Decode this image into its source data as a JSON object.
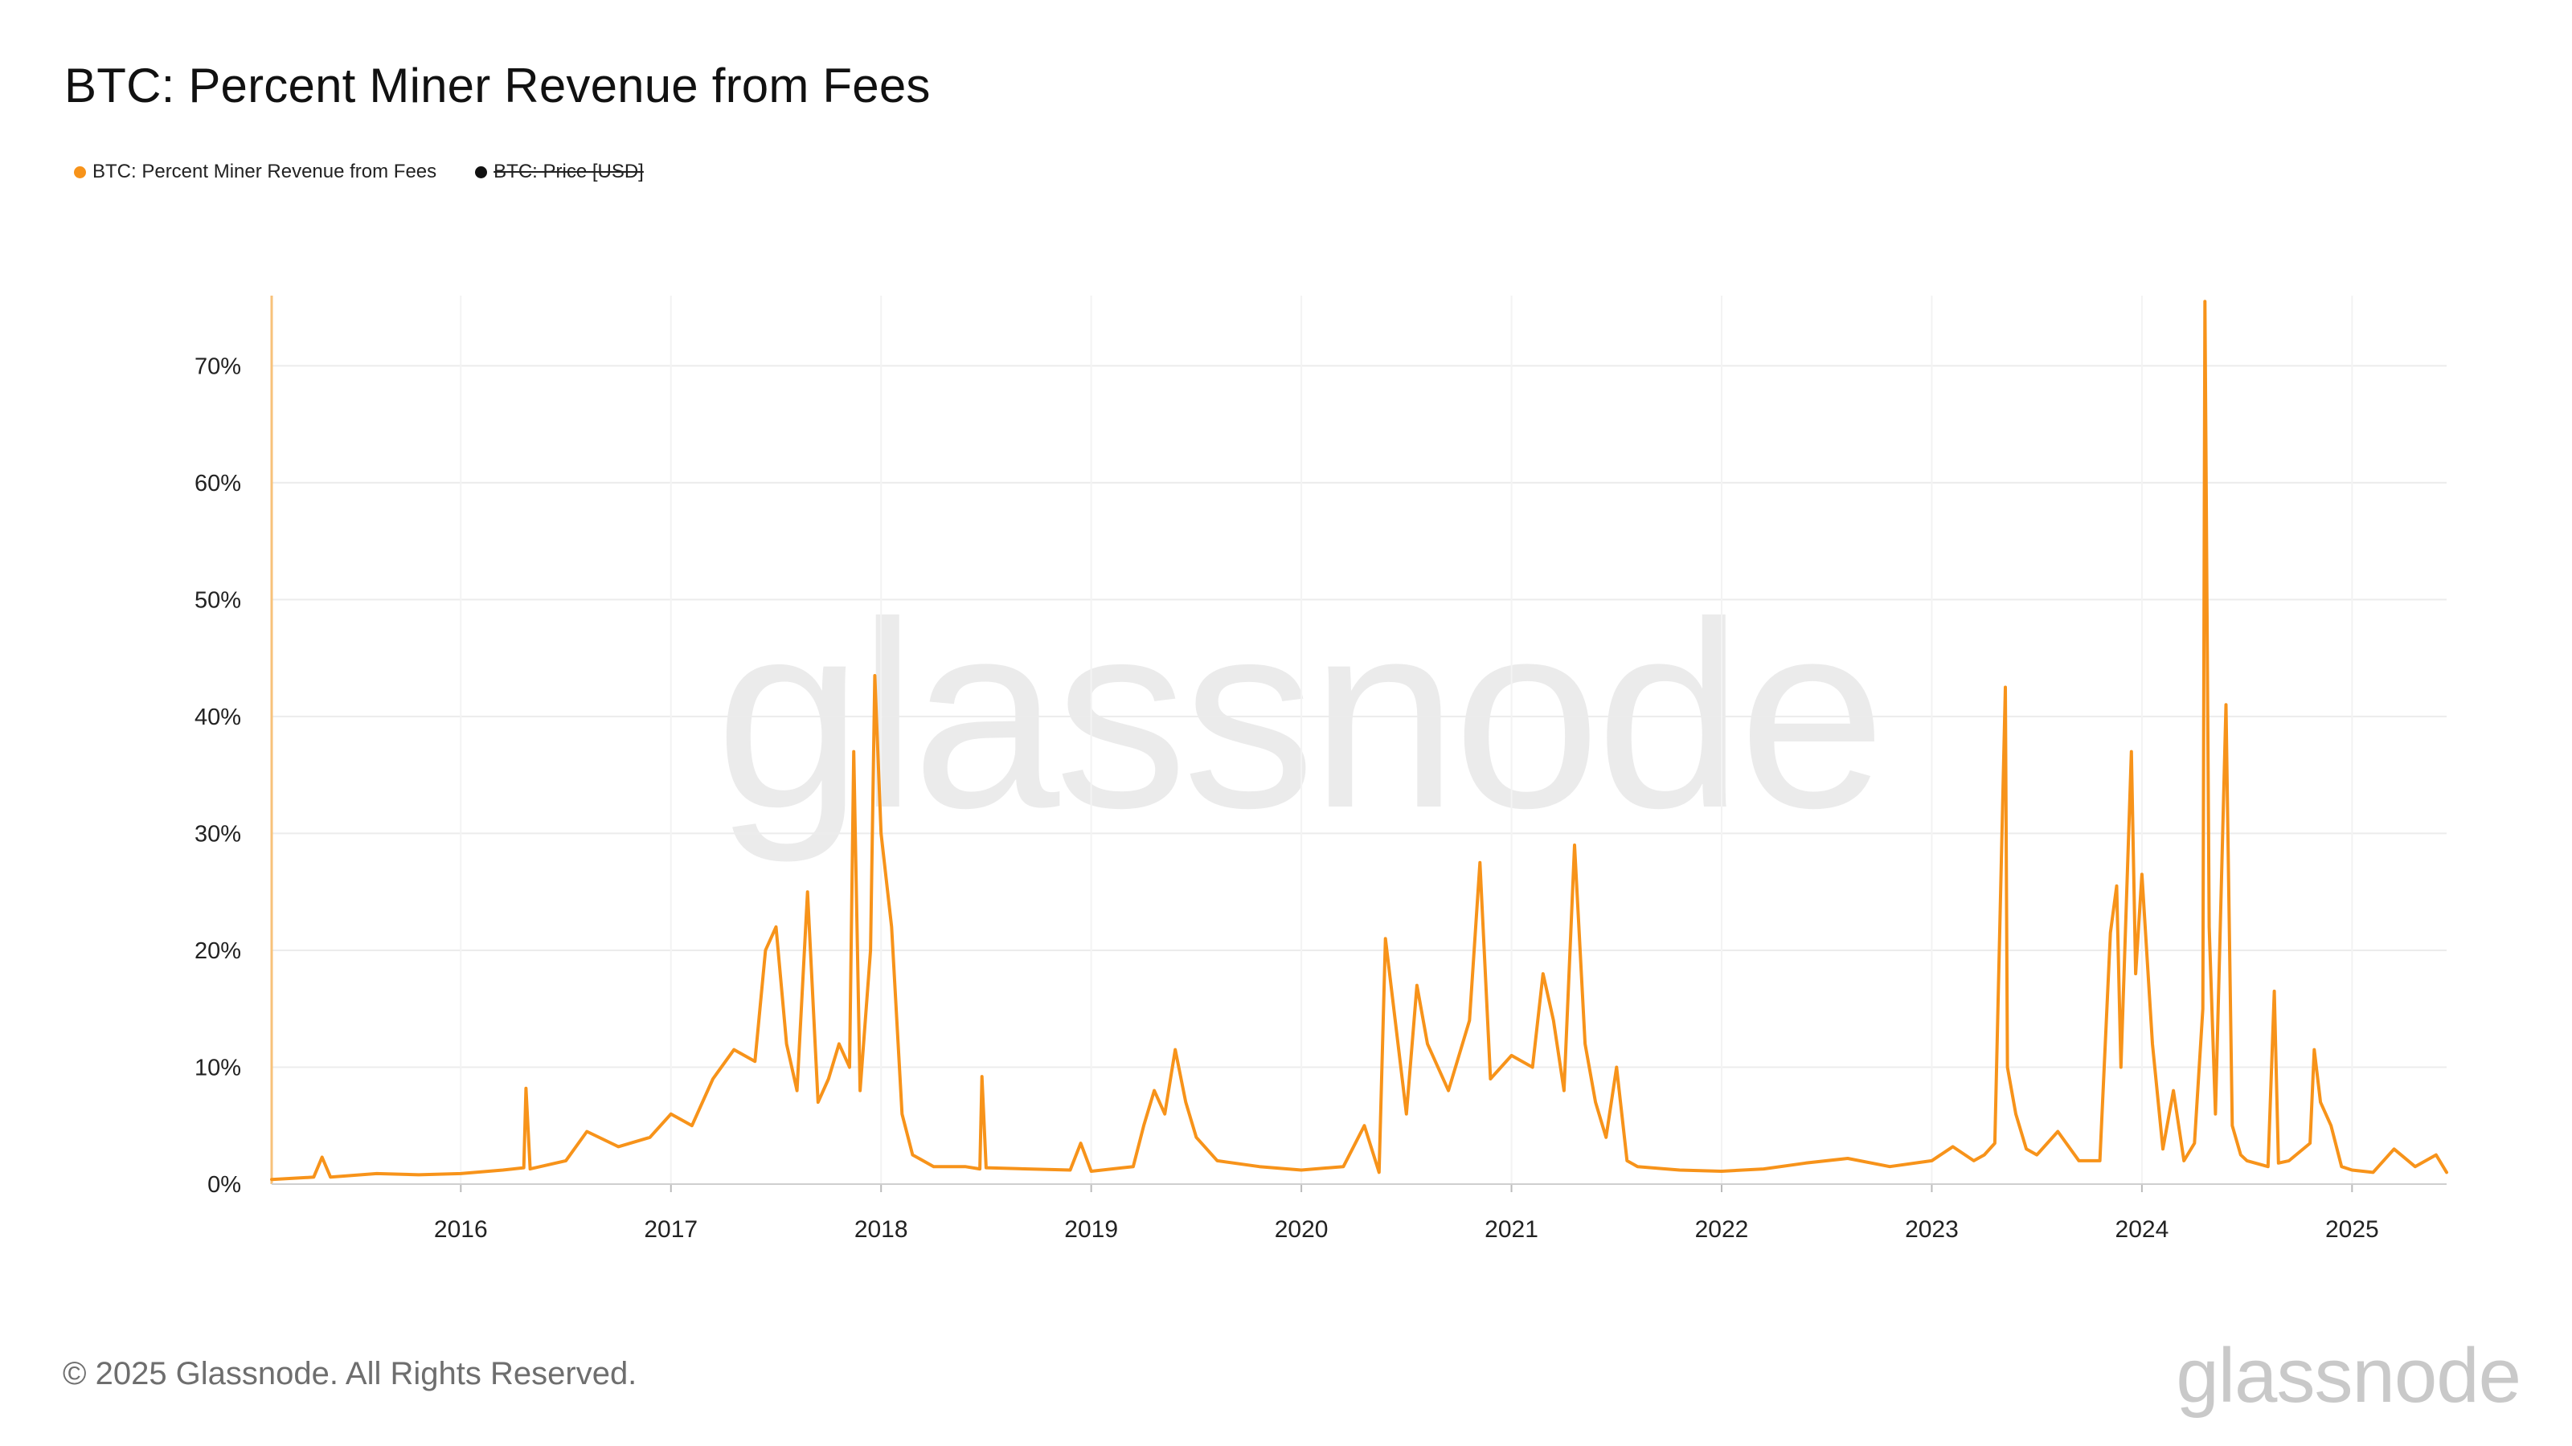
{
  "header": {
    "title": "BTC: Percent Miner Revenue from Fees"
  },
  "legend": {
    "items": [
      {
        "label": "BTC: Percent Miner Revenue from Fees",
        "color": "#f7931a",
        "enabled": true
      },
      {
        "label": "BTC: Price [USD]",
        "color": "#111111",
        "enabled": false
      }
    ]
  },
  "footer": {
    "copyright": "© 2025 Glassnode. All Rights Reserved.",
    "brand": "glassnode"
  },
  "watermark": "glassnode",
  "chart_data": {
    "type": "line",
    "title": "BTC: Percent Miner Revenue from Fees",
    "xlabel": "",
    "ylabel": "",
    "line_color": "#f7931a",
    "xlim": [
      2015.1,
      2025.45
    ],
    "ylim": [
      0,
      76
    ],
    "y_ticks": [
      0,
      10,
      20,
      30,
      40,
      50,
      60,
      70
    ],
    "y_tick_labels": [
      "0%",
      "10%",
      "20%",
      "30%",
      "40%",
      "50%",
      "60%",
      "70%"
    ],
    "x_ticks": [
      2016,
      2017,
      2018,
      2019,
      2020,
      2021,
      2022,
      2023,
      2024,
      2025
    ],
    "x_tick_labels": [
      "2016",
      "2017",
      "2018",
      "2019",
      "2020",
      "2021",
      "2022",
      "2023",
      "2024",
      "2025"
    ],
    "series": [
      {
        "name": "BTC: Percent Miner Revenue from Fees",
        "x": [
          2015.1,
          2015.3,
          2015.34,
          2015.38,
          2015.6,
          2015.8,
          2016.0,
          2016.2,
          2016.3,
          2016.31,
          2016.33,
          2016.5,
          2016.6,
          2016.75,
          2016.9,
          2017.0,
          2017.1,
          2017.2,
          2017.3,
          2017.4,
          2017.45,
          2017.5,
          2017.55,
          2017.6,
          2017.65,
          2017.7,
          2017.75,
          2017.8,
          2017.85,
          2017.87,
          2017.9,
          2017.95,
          2017.97,
          2018.0,
          2018.05,
          2018.1,
          2018.15,
          2018.25,
          2018.4,
          2018.47,
          2018.48,
          2018.5,
          2018.7,
          2018.9,
          2018.95,
          2019.0,
          2019.2,
          2019.25,
          2019.3,
          2019.35,
          2019.4,
          2019.45,
          2019.5,
          2019.6,
          2019.8,
          2020.0,
          2020.2,
          2020.3,
          2020.37,
          2020.4,
          2020.5,
          2020.55,
          2020.6,
          2020.7,
          2020.8,
          2020.85,
          2020.9,
          2021.0,
          2021.1,
          2021.15,
          2021.2,
          2021.25,
          2021.3,
          2021.35,
          2021.4,
          2021.45,
          2021.5,
          2021.55,
          2021.6,
          2021.8,
          2022.0,
          2022.2,
          2022.4,
          2022.6,
          2022.8,
          2023.0,
          2023.1,
          2023.2,
          2023.25,
          2023.3,
          2023.35,
          2023.36,
          2023.4,
          2023.45,
          2023.5,
          2023.6,
          2023.7,
          2023.8,
          2023.85,
          2023.88,
          2023.9,
          2023.95,
          2023.97,
          2024.0,
          2024.05,
          2024.1,
          2024.15,
          2024.2,
          2024.25,
          2024.29,
          2024.3,
          2024.32,
          2024.35,
          2024.4,
          2024.43,
          2024.47,
          2024.5,
          2024.6,
          2024.63,
          2024.65,
          2024.7,
          2024.8,
          2024.82,
          2024.85,
          2024.9,
          2024.95,
          2025.0,
          2025.1,
          2025.2,
          2025.3,
          2025.4,
          2025.45
        ],
        "values": [
          0.4,
          0.6,
          2.3,
          0.6,
          0.9,
          0.8,
          0.9,
          1.2,
          1.4,
          8.2,
          1.3,
          2.0,
          4.5,
          3.2,
          4.0,
          6.0,
          5.0,
          9.0,
          11.5,
          10.5,
          20.0,
          22.0,
          12.0,
          8.0,
          25.0,
          7.0,
          9.0,
          12.0,
          10.0,
          37.0,
          8.0,
          20.0,
          43.5,
          30.0,
          22.0,
          6.0,
          2.5,
          1.5,
          1.5,
          1.3,
          9.2,
          1.4,
          1.3,
          1.2,
          3.5,
          1.1,
          1.5,
          5.0,
          8.0,
          6.0,
          11.5,
          7.0,
          4.0,
          2.0,
          1.5,
          1.2,
          1.5,
          5.0,
          1.0,
          21.0,
          6.0,
          17.0,
          12.0,
          8.0,
          14.0,
          27.5,
          9.0,
          11.0,
          10.0,
          18.0,
          14.0,
          8.0,
          29.0,
          12.0,
          7.0,
          4.0,
          10.0,
          2.0,
          1.5,
          1.2,
          1.1,
          1.3,
          1.8,
          2.2,
          1.5,
          2.0,
          3.2,
          2.0,
          2.5,
          3.5,
          42.5,
          10.0,
          6.0,
          3.0,
          2.5,
          4.5,
          2.0,
          2.0,
          21.5,
          25.5,
          10.0,
          37.0,
          18.0,
          26.5,
          12.0,
          3.0,
          8.0,
          2.0,
          3.5,
          15.0,
          75.5,
          22.0,
          6.0,
          41.0,
          5.0,
          2.5,
          2.0,
          1.5,
          16.5,
          1.8,
          2.0,
          3.5,
          11.5,
          7.0,
          5.0,
          1.5,
          1.2,
          1.0,
          3.0,
          1.5,
          2.5,
          1.0
        ]
      }
    ]
  }
}
